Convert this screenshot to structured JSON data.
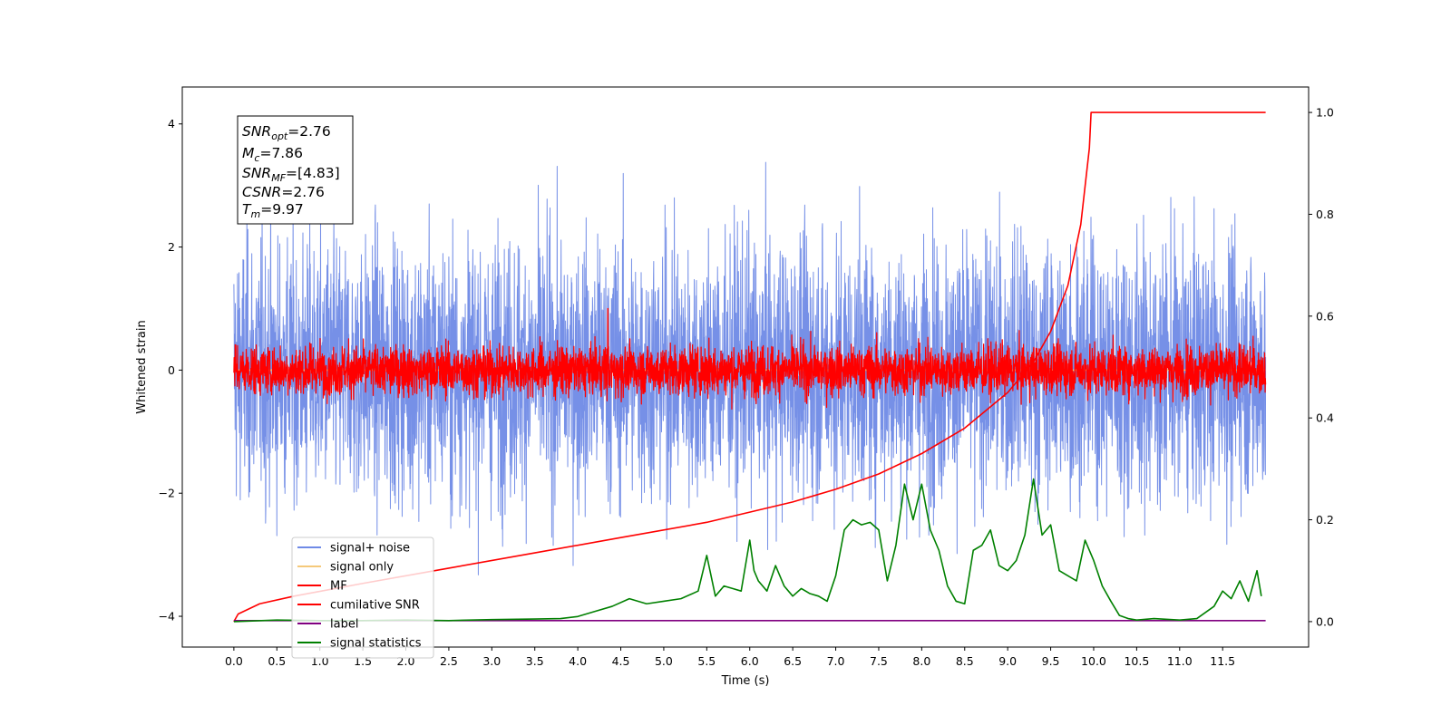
{
  "chart_data": {
    "type": "line",
    "xlabel": "Time (s)",
    "ylabel_left": "Whitened strain",
    "ylabel_right": "",
    "xlim": [
      -0.6,
      12.5
    ],
    "ylim_left": [
      -4.5,
      4.6
    ],
    "ylim_right": [
      -0.05,
      1.05
    ],
    "x_ticks": [
      "0.0",
      "0.5",
      "1.0",
      "1.5",
      "2.0",
      "2.5",
      "3.0",
      "3.5",
      "4.0",
      "4.5",
      "5.0",
      "5.5",
      "6.0",
      "6.5",
      "7.0",
      "7.5",
      "8.0",
      "8.5",
      "9.0",
      "9.5",
      "10.0",
      "10.5",
      "11.0",
      "11.5"
    ],
    "y_ticks_left": [
      "-4",
      "-2",
      "0",
      "2",
      "4"
    ],
    "y_ticks_right": [
      "0.0",
      "0.2",
      "0.4",
      "0.6",
      "0.8",
      "1.0"
    ],
    "grid": false,
    "legend_position": "lower-left",
    "annotation": {
      "snr_opt": "2.76",
      "mc": "7.86",
      "snr_mf": "[4.83]",
      "csnr": "2.76",
      "tm": "9.97"
    },
    "series": [
      {
        "name": "signal+ noise",
        "axis": "left",
        "color": "#6f8ae6",
        "style": "noise",
        "x_range": [
          0,
          12
        ],
        "std": 1.05,
        "peak_max": 4.15,
        "peak_min": -4.05
      },
      {
        "name": "signal only",
        "axis": "left",
        "color": "#f5c97a",
        "style": "flat",
        "x_range": [
          0,
          12
        ],
        "value": 0.0
      },
      {
        "name": "MF",
        "axis": "left",
        "color": "#ff0000",
        "style": "noise",
        "x_range": [
          0,
          12
        ],
        "std": 0.2,
        "spike": {
          "x": 4.35,
          "y": 1.0
        }
      },
      {
        "name": "cumilative SNR",
        "axis": "right",
        "color": "#ff0000",
        "style": "line",
        "x": [
          0.0,
          0.05,
          0.3,
          0.7,
          1.5,
          2.5,
          3.5,
          4.5,
          5.5,
          6.5,
          7.0,
          7.5,
          8.0,
          8.5,
          9.0,
          9.3,
          9.5,
          9.7,
          9.85,
          9.95,
          9.97,
          10.5,
          11.0,
          11.5,
          12.0
        ],
        "values": [
          0.0,
          0.015,
          0.035,
          0.05,
          0.075,
          0.105,
          0.135,
          0.165,
          0.195,
          0.235,
          0.26,
          0.29,
          0.33,
          0.38,
          0.45,
          0.51,
          0.57,
          0.66,
          0.78,
          0.93,
          1.0,
          1.0,
          1.0,
          1.0,
          1.0
        ]
      },
      {
        "name": "label",
        "axis": "right",
        "color": "#800080",
        "style": "line",
        "x": [
          0.0,
          12.0
        ],
        "values": [
          0.002,
          0.002
        ]
      },
      {
        "name": "signal statistics",
        "axis": "right",
        "color": "#008000",
        "style": "line",
        "x": [
          0.0,
          0.5,
          1.0,
          1.5,
          2.0,
          2.5,
          3.0,
          3.5,
          3.8,
          4.0,
          4.2,
          4.4,
          4.6,
          4.8,
          5.0,
          5.2,
          5.4,
          5.5,
          5.6,
          5.7,
          5.8,
          5.9,
          6.0,
          6.05,
          6.1,
          6.2,
          6.3,
          6.4,
          6.5,
          6.6,
          6.7,
          6.8,
          6.9,
          7.0,
          7.1,
          7.2,
          7.3,
          7.4,
          7.5,
          7.6,
          7.7,
          7.8,
          7.9,
          8.0,
          8.1,
          8.2,
          8.3,
          8.4,
          8.5,
          8.6,
          8.7,
          8.8,
          8.9,
          9.0,
          9.1,
          9.2,
          9.3,
          9.4,
          9.5,
          9.6,
          9.7,
          9.8,
          9.9,
          10.0,
          10.1,
          10.2,
          10.3,
          10.4,
          10.5,
          10.7,
          11.0,
          11.2,
          11.4,
          11.5,
          11.6,
          11.7,
          11.8,
          11.9,
          11.95
        ],
        "values": [
          0.0,
          0.003,
          0.002,
          0.002,
          0.003,
          0.002,
          0.004,
          0.005,
          0.006,
          0.01,
          0.02,
          0.03,
          0.045,
          0.035,
          0.04,
          0.045,
          0.06,
          0.13,
          0.05,
          0.07,
          0.065,
          0.06,
          0.16,
          0.1,
          0.08,
          0.06,
          0.11,
          0.07,
          0.05,
          0.065,
          0.055,
          0.05,
          0.04,
          0.09,
          0.18,
          0.2,
          0.19,
          0.195,
          0.18,
          0.08,
          0.15,
          0.27,
          0.2,
          0.27,
          0.18,
          0.14,
          0.07,
          0.04,
          0.035,
          0.14,
          0.15,
          0.18,
          0.11,
          0.1,
          0.12,
          0.17,
          0.28,
          0.17,
          0.19,
          0.1,
          0.09,
          0.08,
          0.16,
          0.12,
          0.07,
          0.04,
          0.012,
          0.006,
          0.003,
          0.006,
          0.003,
          0.006,
          0.03,
          0.06,
          0.045,
          0.08,
          0.04,
          0.1,
          0.05
        ]
      }
    ]
  }
}
